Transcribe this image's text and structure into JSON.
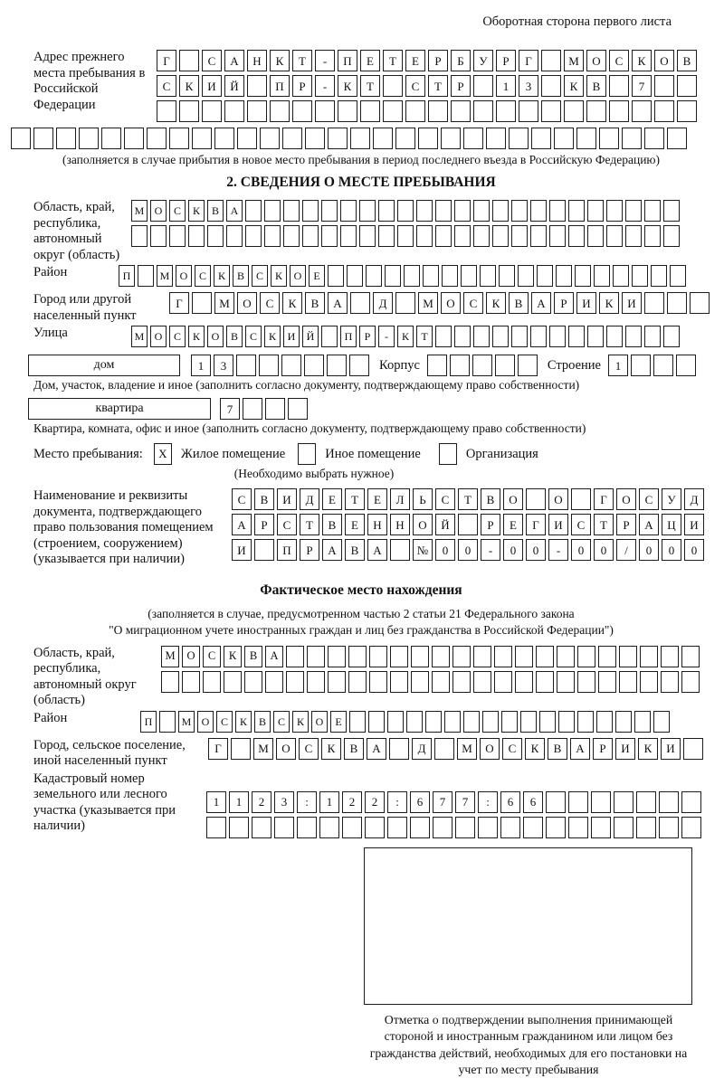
{
  "page": {
    "back_note": "Оборотная сторона первого листа"
  },
  "prev_address": {
    "label": "Адрес прежнего места пребывания в Российской Федерации",
    "rows": [
      {
        "chars": "Г САНКТ-ПЕТЕРБУРГ МОСКОВ",
        "len": 24
      },
      {
        "chars": "СКИЙ ПР-КТ СТР 13 КВ 7",
        "len": 24
      },
      {
        "chars": "",
        "len": 24
      },
      {
        "chars": "",
        "len": 30
      }
    ],
    "note": "(заполняется в случае прибытия в новое место пребывания в период последнего въезда в Российскую Федерацию)"
  },
  "section2": {
    "title": "2. СВЕДЕНИЯ О МЕСТЕ ПРЕБЫВАНИЯ",
    "region": {
      "label": "Область, край, республика, автономный округ (область)",
      "rows": [
        {
          "chars": "МОСКВА",
          "len": 29
        },
        {
          "chars": "",
          "len": 29
        }
      ]
    },
    "district": {
      "label": "Район",
      "row": {
        "chars": "П МОСКВСКОЕ",
        "len": 30
      }
    },
    "city": {
      "label": "Город или другой населенный пункт",
      "row": {
        "chars": "Г МОСКВА Д МОСКВАРИКИ",
        "len": 24
      }
    },
    "street": {
      "label": "Улица",
      "row": {
        "chars": "МОСКОВСКИЙ ПР-КТ",
        "len": 29
      }
    },
    "house": {
      "box_label": "дом",
      "house_row": {
        "chars": "13",
        "len": 8
      },
      "korpus_label": "Корпус",
      "korpus_row": {
        "chars": "",
        "len": 5
      },
      "stroenie_label": "Строение",
      "stroenie_row": {
        "chars": "1",
        "len": 4
      },
      "note": "Дом, участок, владение и иное (заполнить согласно документу, подтверждающему право собственности)"
    },
    "apartment": {
      "box_label": "квартира",
      "row": {
        "chars": "7",
        "len": 4
      },
      "note": "Квартира, комната, офис и иное (заполнить согласно документу, подтверждающему право собственности)"
    },
    "stay_type": {
      "label": "Место пребывания:",
      "options": [
        {
          "label": "Жилое помещение",
          "mark": "X"
        },
        {
          "label": "Иное помещение",
          "mark": ""
        },
        {
          "label": "Организация",
          "mark": ""
        }
      ],
      "note": "(Необходимо выбрать нужное)"
    },
    "document": {
      "label": "Наименование и реквизиты документа, подтверждающего право пользования помещением (строением, сооружением) (указывается при наличии)",
      "rows": [
        {
          "chars": "СВИДЕТЕЛЬСТВО О ГОСУД",
          "len": 21
        },
        {
          "chars": "АРСТВЕННОЙ РЕГИСТРАЦИ",
          "len": 21
        },
        {
          "chars": "И ПРАВА №00-00-00/000",
          "len": 21
        }
      ]
    }
  },
  "actual_location": {
    "title": "Фактическое место нахождения",
    "note_line1": "(заполняется в случае, предусмотренном частью 2 статьи 21 Федерального закона",
    "note_line2": "\"О миграционном учете иностранных граждан и лиц без гражданства в Российской Федерации\")",
    "region": {
      "label": "Область, край, республика, автономный округ (область)",
      "rows": [
        {
          "chars": "МОСКВА",
          "len": 26
        },
        {
          "chars": "",
          "len": 26
        }
      ]
    },
    "district": {
      "label": "Район",
      "row": {
        "chars": "П МОСКВСКОЕ",
        "len": 28
      }
    },
    "city": {
      "label": "Город, сельское поселение, иной населенный пункт",
      "row": {
        "chars": "Г МОСКВА Д МОСКВАРИКИ",
        "len": 22
      }
    },
    "cadastral": {
      "label": "Кадастровый номер земельного или лесного участка (указывается при наличии)",
      "rows": [
        {
          "chars": "1123:122:677:66",
          "len": 22
        },
        {
          "chars": "",
          "len": 22
        }
      ]
    },
    "stamp_note": "Отметка о подтверждении выполнения принимающей стороной и иностранным гражданином или лицом без гражданства действий, необходимых для его постановки на учет по месту пребывания"
  }
}
